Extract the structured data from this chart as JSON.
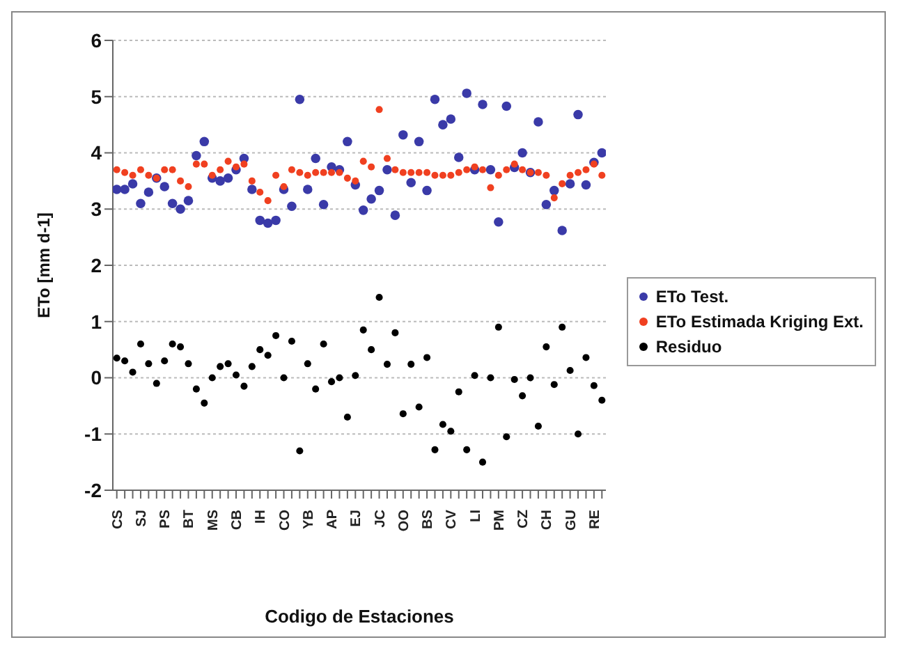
{
  "chart_data": {
    "type": "scatter",
    "xlabel": "Codigo de Estaciones",
    "ylabel": "ETo [mm d-1]",
    "categories": [
      "CS",
      null,
      null,
      "SJ",
      null,
      null,
      "PS",
      null,
      null,
      "BT",
      null,
      null,
      "MS",
      null,
      null,
      "CB",
      null,
      null,
      "IH",
      null,
      null,
      "CO",
      null,
      null,
      "YB",
      null,
      null,
      "AP",
      null,
      null,
      "EJ",
      null,
      null,
      "JC",
      null,
      null,
      "OO",
      null,
      null,
      "BS",
      null,
      null,
      "CV",
      null,
      null,
      "LI",
      null,
      null,
      "PM",
      null,
      null,
      "CZ",
      null,
      null,
      "CH",
      null,
      null,
      "GU",
      null,
      null,
      "RE",
      null
    ],
    "series": [
      {
        "name": "ETo Test.",
        "color": "#3a3aa8",
        "values": [
          3.35,
          3.35,
          3.45,
          3.1,
          3.3,
          3.55,
          3.4,
          3.1,
          3.0,
          3.15,
          3.95,
          4.2,
          3.55,
          3.5,
          3.55,
          3.7,
          3.9,
          3.35,
          2.8,
          2.75,
          2.8,
          3.35,
          3.05,
          4.95,
          3.35,
          3.9,
          3.08,
          3.75,
          3.7,
          4.2,
          3.43,
          2.98,
          3.18,
          3.33,
          3.7,
          2.89,
          4.32,
          3.47,
          4.2,
          3.33,
          4.95,
          4.5,
          4.6,
          3.92,
          5.06,
          3.7,
          4.86,
          3.7,
          2.77,
          4.83,
          3.74,
          4.0,
          3.65,
          4.55,
          3.08,
          3.33,
          2.62,
          3.45,
          4.68,
          3.43,
          3.83,
          4.0
        ]
      },
      {
        "name": "ETo Estimada Kriging Ext.",
        "color": "#f04020",
        "values": [
          3.7,
          3.65,
          3.6,
          3.7,
          3.6,
          3.55,
          3.7,
          3.7,
          3.5,
          3.4,
          3.8,
          3.8,
          3.6,
          3.7,
          3.85,
          3.75,
          3.8,
          3.5,
          3.3,
          3.15,
          3.6,
          3.4,
          3.7,
          3.65,
          3.6,
          3.65,
          3.65,
          3.65,
          3.65,
          3.55,
          3.5,
          3.85,
          3.75,
          4.77,
          3.9,
          3.7,
          3.65,
          3.65,
          3.65,
          3.65,
          3.6,
          3.6,
          3.6,
          3.65,
          3.7,
          3.75,
          3.7,
          3.38,
          3.6,
          3.7,
          3.8,
          3.7,
          3.65,
          3.65,
          3.6,
          3.2,
          3.45,
          3.6,
          3.65,
          3.7,
          3.8,
          3.6
        ]
      },
      {
        "name": "Residuo",
        "color": "#000000",
        "values": [
          0.35,
          0.3,
          0.1,
          0.6,
          0.25,
          -0.1,
          0.3,
          0.6,
          0.55,
          0.25,
          -0.2,
          -0.45,
          0,
          0.2,
          0.25,
          0.05,
          -0.15,
          0.2,
          0.5,
          0.4,
          0.75,
          0,
          0.65,
          -1.3,
          0.25,
          -0.2,
          0.6,
          -0.07,
          0,
          -0.7,
          0.04,
          0.85,
          0.5,
          1.43,
          0.24,
          0.8,
          -0.64,
          0.24,
          -0.52,
          0.36,
          -1.28,
          -0.83,
          -0.95,
          -0.25,
          -1.28,
          0.04,
          -1.5,
          0,
          0.9,
          -1.05,
          -0.03,
          -0.32,
          0,
          -0.86,
          0.55,
          -0.12,
          0.9,
          0.13,
          -1.0,
          0.36,
          -0.14,
          -0.4
        ]
      }
    ],
    "ylim": [
      -2,
      6
    ],
    "yticks": [
      -2,
      -1,
      0,
      1,
      2,
      3,
      4,
      5,
      6
    ],
    "grid": "y",
    "legend": "right",
    "marker": "circle"
  }
}
